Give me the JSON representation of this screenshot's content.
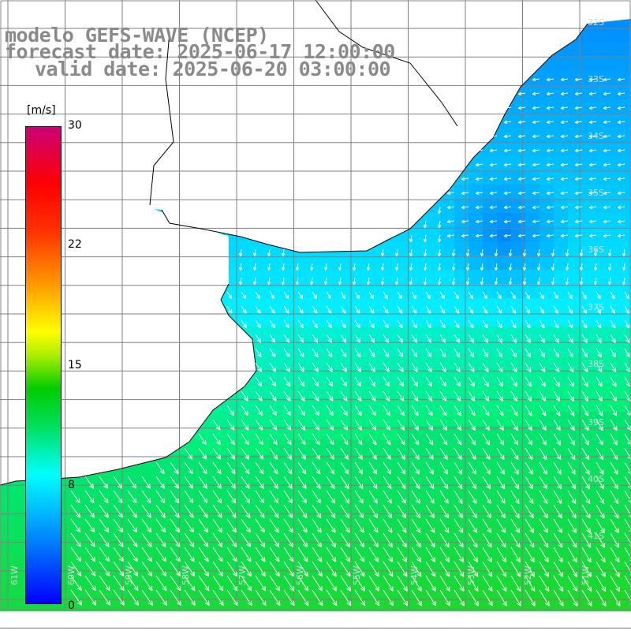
{
  "titles": {
    "line1": "modelo GEFS-WAVE (NCEP)",
    "line2": "forecast date: 2025-06-17 12:00:00",
    "line3": "valid date: 2025-06-20 03:00:00"
  },
  "colorbar": {
    "unit": "[m/s]",
    "ticks": [
      "30",
      "22",
      "15",
      "8",
      "0"
    ],
    "tick_values": [
      30,
      22,
      15,
      8,
      0
    ],
    "range": [
      0,
      30
    ],
    "colors": [
      "#0000ff",
      "#0099ff",
      "#00ffff",
      "#00cc44",
      "#00dd00",
      "#99ee00",
      "#ffff00",
      "#ff9900",
      "#ff3300",
      "#ff0000",
      "#cc0066"
    ]
  },
  "map": {
    "lat_labels": [
      "32S",
      "33S",
      "34S",
      "35S",
      "36S",
      "37S",
      "38S",
      "39S",
      "40S",
      "41S"
    ],
    "lon_labels": [
      "61W",
      "60W",
      "59W",
      "58W",
      "57W",
      "56W",
      "55W",
      "54W",
      "53W",
      "52W",
      "51W"
    ],
    "colors": {
      "land": "#ffffff",
      "grid": "#808080",
      "coast": "#000000",
      "arrows": "#ffffff"
    }
  }
}
